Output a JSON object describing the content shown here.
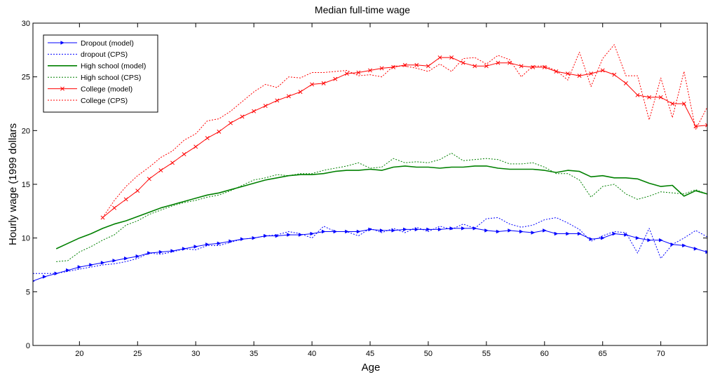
{
  "chart_data": {
    "type": "line",
    "title": "Median full-time wage",
    "xlabel": "Age",
    "ylabel": "Hourly wage (1999 dollars",
    "xlim": [
      16,
      74
    ],
    "ylim": [
      0,
      30
    ],
    "xticks": [
      20,
      25,
      30,
      35,
      40,
      45,
      50,
      55,
      60,
      65,
      70
    ],
    "yticks": [
      0,
      5,
      10,
      15,
      20,
      25,
      30
    ],
    "grid": false,
    "legend_position": "top-left",
    "series": [
      {
        "name": "Dropout (model)",
        "color": "#0000ff",
        "dash": "solid",
        "marker": "triangle-right",
        "x": [
          16,
          17,
          18,
          19,
          20,
          21,
          22,
          23,
          24,
          25,
          26,
          27,
          28,
          29,
          30,
          31,
          32,
          33,
          34,
          35,
          36,
          37,
          38,
          39,
          40,
          41,
          42,
          43,
          44,
          45,
          46,
          47,
          48,
          49,
          50,
          51,
          52,
          53,
          54,
          55,
          56,
          57,
          58,
          59,
          60,
          61,
          62,
          63,
          64,
          65,
          66,
          67,
          68,
          69,
          70,
          71,
          72,
          73,
          74
        ],
        "y": [
          6.0,
          6.4,
          6.7,
          7.0,
          7.3,
          7.5,
          7.7,
          7.9,
          8.1,
          8.3,
          8.6,
          8.7,
          8.8,
          9.0,
          9.2,
          9.4,
          9.5,
          9.7,
          9.9,
          10.0,
          10.2,
          10.2,
          10.3,
          10.3,
          10.4,
          10.6,
          10.6,
          10.6,
          10.6,
          10.8,
          10.7,
          10.7,
          10.8,
          10.8,
          10.8,
          10.8,
          10.9,
          10.9,
          10.9,
          10.7,
          10.6,
          10.7,
          10.6,
          10.5,
          10.7,
          10.4,
          10.4,
          10.4,
          9.9,
          10.0,
          10.4,
          10.3,
          10.0,
          9.8,
          9.8,
          9.4,
          9.3,
          9.0,
          8.7
        ]
      },
      {
        "name": "dropout (CPS)",
        "color": "#0000ff",
        "dash": "dot",
        "marker": "none",
        "x": [
          16,
          17,
          18,
          19,
          20,
          21,
          22,
          23,
          24,
          25,
          26,
          27,
          28,
          29,
          30,
          31,
          32,
          33,
          34,
          35,
          36,
          37,
          38,
          39,
          40,
          41,
          42,
          43,
          44,
          45,
          46,
          47,
          48,
          49,
          50,
          51,
          52,
          53,
          54,
          55,
          56,
          57,
          58,
          59,
          60,
          61,
          62,
          63,
          64,
          65,
          66,
          67,
          68,
          69,
          70,
          71,
          72,
          73,
          74
        ],
        "y": [
          6.7,
          6.7,
          6.7,
          6.9,
          7.1,
          7.3,
          7.5,
          7.6,
          7.8,
          8.1,
          8.6,
          8.5,
          8.7,
          9.0,
          8.9,
          9.3,
          9.3,
          9.6,
          9.9,
          10.0,
          10.2,
          10.3,
          10.6,
          10.4,
          10.0,
          11.1,
          10.6,
          10.6,
          10.2,
          10.9,
          10.5,
          10.9,
          10.5,
          11.0,
          10.6,
          11.1,
          10.8,
          11.3,
          10.9,
          11.8,
          11.9,
          11.3,
          11.0,
          11.2,
          11.7,
          11.9,
          11.4,
          10.8,
          9.7,
          10.2,
          10.6,
          10.5,
          8.6,
          10.9,
          8.1,
          9.4,
          10.0,
          10.7,
          10.1
        ]
      },
      {
        "name": "High school (model)",
        "color": "#008000",
        "dash": "solid",
        "marker": "none",
        "x": [
          18,
          19,
          20,
          21,
          22,
          23,
          24,
          25,
          26,
          27,
          28,
          29,
          30,
          31,
          32,
          33,
          34,
          35,
          36,
          37,
          38,
          39,
          40,
          41,
          42,
          43,
          44,
          45,
          46,
          47,
          48,
          49,
          50,
          51,
          52,
          53,
          54,
          55,
          56,
          57,
          58,
          59,
          60,
          61,
          62,
          63,
          64,
          65,
          66,
          67,
          68,
          69,
          70,
          71,
          72,
          73,
          74
        ],
        "y": [
          9.0,
          9.5,
          10.0,
          10.4,
          10.9,
          11.3,
          11.6,
          12.0,
          12.4,
          12.8,
          13.1,
          13.4,
          13.7,
          14.0,
          14.2,
          14.5,
          14.8,
          15.1,
          15.4,
          15.6,
          15.8,
          15.9,
          15.9,
          16.0,
          16.2,
          16.3,
          16.3,
          16.4,
          16.3,
          16.6,
          16.7,
          16.6,
          16.6,
          16.5,
          16.6,
          16.6,
          16.7,
          16.7,
          16.5,
          16.4,
          16.4,
          16.4,
          16.3,
          16.1,
          16.3,
          16.2,
          15.7,
          15.8,
          15.6,
          15.6,
          15.5,
          15.1,
          14.8,
          14.9,
          13.9,
          14.4,
          14.1
        ]
      },
      {
        "name": "High school (CPS)",
        "color": "#008000",
        "dash": "dot",
        "marker": "none",
        "x": [
          18,
          19,
          20,
          21,
          22,
          23,
          24,
          25,
          26,
          27,
          28,
          29,
          30,
          31,
          32,
          33,
          34,
          35,
          36,
          37,
          38,
          39,
          40,
          41,
          42,
          43,
          44,
          45,
          46,
          47,
          48,
          49,
          50,
          51,
          52,
          53,
          54,
          55,
          56,
          57,
          58,
          59,
          60,
          61,
          62,
          63,
          64,
          65,
          66,
          67,
          68,
          69,
          70,
          71,
          72,
          73,
          74
        ],
        "y": [
          7.8,
          7.9,
          8.7,
          9.2,
          9.8,
          10.3,
          11.2,
          11.6,
          12.2,
          12.6,
          13.0,
          13.3,
          13.5,
          13.8,
          14.0,
          14.4,
          14.9,
          15.4,
          15.6,
          15.9,
          15.8,
          16.0,
          16.0,
          16.3,
          16.5,
          16.7,
          17.0,
          16.5,
          16.6,
          17.4,
          17.0,
          17.1,
          17.0,
          17.3,
          17.9,
          17.2,
          17.3,
          17.4,
          17.3,
          16.9,
          16.9,
          17.0,
          16.6,
          16.0,
          16.0,
          15.4,
          13.8,
          14.8,
          15.0,
          14.1,
          13.6,
          13.9,
          14.3,
          14.2,
          14.1,
          14.5,
          14.1
        ]
      },
      {
        "name": "College (model)",
        "color": "#ff0000",
        "dash": "solid",
        "marker": "x",
        "x": [
          22,
          23,
          24,
          25,
          26,
          27,
          28,
          29,
          30,
          31,
          32,
          33,
          34,
          35,
          36,
          37,
          38,
          39,
          40,
          41,
          42,
          43,
          44,
          45,
          46,
          47,
          48,
          49,
          50,
          51,
          52,
          53,
          54,
          55,
          56,
          57,
          58,
          59,
          60,
          61,
          62,
          63,
          64,
          65,
          66,
          67,
          68,
          69,
          70,
          71,
          72,
          73,
          74
        ],
        "y": [
          11.9,
          12.8,
          13.6,
          14.4,
          15.5,
          16.3,
          17.0,
          17.8,
          18.5,
          19.3,
          19.9,
          20.7,
          21.3,
          21.8,
          22.3,
          22.8,
          23.2,
          23.6,
          24.3,
          24.4,
          24.8,
          25.3,
          25.4,
          25.6,
          25.8,
          25.9,
          26.1,
          26.1,
          26.0,
          26.8,
          26.8,
          26.3,
          26.0,
          26.0,
          26.3,
          26.3,
          26.0,
          25.9,
          25.9,
          25.5,
          25.3,
          25.1,
          25.3,
          25.6,
          25.2,
          24.4,
          23.3,
          23.1,
          23.1,
          22.5,
          22.5,
          20.4,
          20.5
        ]
      },
      {
        "name": "College (CPS)",
        "color": "#ff0000",
        "dash": "dot",
        "marker": "none",
        "x": [
          22,
          23,
          24,
          25,
          26,
          27,
          28,
          29,
          30,
          31,
          32,
          33,
          34,
          35,
          36,
          37,
          38,
          39,
          40,
          41,
          42,
          43,
          44,
          45,
          46,
          47,
          48,
          49,
          50,
          51,
          52,
          53,
          54,
          55,
          56,
          57,
          58,
          59,
          60,
          61,
          62,
          63,
          64,
          65,
          66,
          67,
          68,
          69,
          70,
          71,
          72,
          73,
          74
        ],
        "y": [
          11.9,
          13.5,
          14.8,
          15.8,
          16.6,
          17.5,
          18.1,
          19.1,
          19.7,
          20.9,
          21.1,
          21.8,
          22.7,
          23.6,
          24.3,
          24.0,
          25.0,
          24.9,
          25.4,
          25.4,
          25.5,
          25.6,
          25.1,
          25.2,
          25.0,
          26.0,
          26.0,
          25.8,
          25.5,
          26.2,
          25.5,
          26.7,
          26.8,
          26.2,
          27.0,
          26.6,
          25.0,
          26.0,
          26.0,
          25.6,
          24.7,
          27.3,
          24.1,
          26.7,
          28.0,
          25.1,
          25.1,
          21.0,
          24.9,
          21.2,
          25.5,
          20.1,
          22.2
        ]
      }
    ]
  }
}
